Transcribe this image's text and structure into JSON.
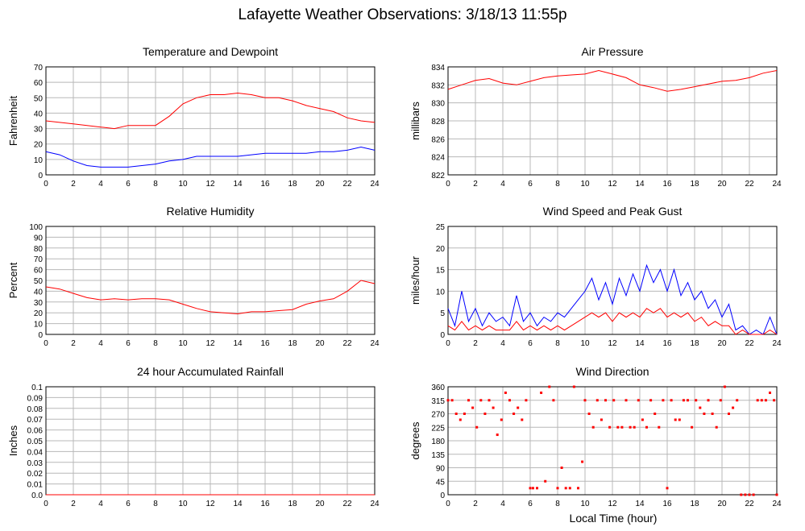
{
  "page": {
    "title": "Lafayette Weather Observations: 3/18/13 11:55p",
    "xaxis_title": "Local Time (hour)"
  },
  "colors": {
    "red": "#ff0000",
    "blue": "#0000ff",
    "grid": "#b8b8b8"
  },
  "chart_data": [
    {
      "id": "temp",
      "type": "line",
      "title": "Temperature and Dewpoint",
      "ylabel": "Fahrenheit",
      "ylim": [
        0,
        70
      ],
      "yticks": [
        "0",
        "10",
        "20",
        "30",
        "40",
        "50",
        "60",
        "70"
      ],
      "xticks": [
        "0",
        "2",
        "4",
        "6",
        "8",
        "10",
        "12",
        "14",
        "16",
        "18",
        "20",
        "22",
        "24"
      ],
      "xlim": [
        0,
        24
      ],
      "grid": true,
      "series": [
        {
          "color": "#ff0000",
          "x": [
            0,
            1,
            2,
            3,
            4,
            5,
            6,
            7,
            8,
            9,
            10,
            11,
            12,
            13,
            14,
            15,
            16,
            17,
            18,
            19,
            20,
            21,
            22,
            23,
            24
          ],
          "y": [
            35,
            34,
            33,
            32,
            31,
            30,
            32,
            32,
            32,
            38,
            46,
            50,
            52,
            52,
            53,
            52,
            50,
            50,
            48,
            45,
            43,
            41,
            37,
            35,
            34
          ]
        },
        {
          "color": "#0000ff",
          "x": [
            0,
            1,
            2,
            3,
            4,
            5,
            6,
            7,
            8,
            9,
            10,
            11,
            12,
            13,
            14,
            15,
            16,
            17,
            18,
            19,
            20,
            21,
            22,
            23,
            24
          ],
          "y": [
            15,
            13,
            9,
            6,
            5,
            5,
            5,
            6,
            7,
            9,
            10,
            12,
            12,
            12,
            12,
            13,
            14,
            14,
            14,
            14,
            15,
            15,
            16,
            18,
            16
          ]
        }
      ]
    },
    {
      "id": "pressure",
      "type": "line",
      "title": "Air Pressure",
      "ylabel": "millibars",
      "ylim": [
        822,
        834
      ],
      "yticks": [
        "822",
        "824",
        "826",
        "828",
        "830",
        "832",
        "834"
      ],
      "xticks": [
        "0",
        "2",
        "4",
        "6",
        "8",
        "10",
        "12",
        "14",
        "16",
        "18",
        "20",
        "22",
        "24"
      ],
      "xlim": [
        0,
        24
      ],
      "grid": true,
      "series": [
        {
          "color": "#ff0000",
          "x": [
            0,
            1,
            2,
            3,
            4,
            5,
            6,
            7,
            8,
            9,
            10,
            11,
            12,
            13,
            14,
            15,
            16,
            17,
            18,
            19,
            20,
            21,
            22,
            23,
            24
          ],
          "y": [
            831.5,
            832.0,
            832.5,
            832.7,
            832.2,
            832.0,
            832.4,
            832.8,
            833.0,
            833.1,
            833.2,
            833.6,
            833.2,
            832.8,
            832.0,
            831.7,
            831.3,
            831.5,
            831.8,
            832.1,
            832.4,
            832.5,
            832.8,
            833.3,
            833.6
          ]
        }
      ]
    },
    {
      "id": "rh",
      "type": "line",
      "title": "Relative Humidity",
      "ylabel": "Percent",
      "ylim": [
        0,
        100
      ],
      "yticks": [
        "0",
        "10",
        "20",
        "30",
        "40",
        "50",
        "60",
        "70",
        "80",
        "90",
        "100"
      ],
      "xticks": [
        "0",
        "2",
        "4",
        "6",
        "8",
        "10",
        "12",
        "14",
        "16",
        "18",
        "20",
        "22",
        "24"
      ],
      "xlim": [
        0,
        24
      ],
      "grid": true,
      "series": [
        {
          "color": "#ff0000",
          "x": [
            0,
            1,
            2,
            3,
            4,
            5,
            6,
            7,
            8,
            9,
            10,
            11,
            12,
            13,
            14,
            15,
            16,
            17,
            18,
            19,
            20,
            21,
            22,
            23,
            24
          ],
          "y": [
            44,
            42,
            38,
            34,
            32,
            33,
            32,
            33,
            33,
            32,
            28,
            24,
            21,
            20,
            19,
            21,
            21,
            22,
            23,
            28,
            31,
            33,
            40,
            50,
            47
          ]
        }
      ]
    },
    {
      "id": "wind",
      "type": "line",
      "title": "Wind Speed and Peak Gust",
      "ylabel": "miles/hour",
      "ylim": [
        0,
        25
      ],
      "yticks": [
        "0",
        "5",
        "10",
        "15",
        "20",
        "25"
      ],
      "xticks": [
        "0",
        "2",
        "4",
        "6",
        "8",
        "10",
        "12",
        "14",
        "16",
        "18",
        "20",
        "22",
        "24"
      ],
      "xlim": [
        0,
        24
      ],
      "grid": true,
      "series": [
        {
          "color": "#0000ff",
          "x": [
            0,
            0.5,
            1,
            1.5,
            2,
            2.5,
            3,
            3.5,
            4,
            4.5,
            5,
            5.5,
            6,
            6.5,
            7,
            7.5,
            8,
            8.5,
            9,
            9.5,
            10,
            10.5,
            11,
            11.5,
            12,
            12.5,
            13,
            13.5,
            14,
            14.5,
            15,
            15.5,
            16,
            16.5,
            17,
            17.5,
            18,
            18.5,
            19,
            19.5,
            20,
            20.5,
            21,
            21.5,
            22,
            22.5,
            23,
            23.5,
            24
          ],
          "y": [
            6,
            2,
            10,
            3,
            6,
            2,
            5,
            3,
            4,
            2,
            9,
            3,
            5,
            2,
            4,
            3,
            5,
            4,
            6,
            8,
            10,
            13,
            8,
            12,
            7,
            13,
            9,
            14,
            10,
            16,
            12,
            15,
            10,
            15,
            9,
            12,
            8,
            10,
            6,
            8,
            4,
            7,
            1,
            2,
            0,
            1,
            0,
            4,
            0
          ]
        },
        {
          "color": "#ff0000",
          "x": [
            0,
            0.5,
            1,
            1.5,
            2,
            2.5,
            3,
            3.5,
            4,
            4.5,
            5,
            5.5,
            6,
            6.5,
            7,
            7.5,
            8,
            8.5,
            9,
            9.5,
            10,
            10.5,
            11,
            11.5,
            12,
            12.5,
            13,
            13.5,
            14,
            14.5,
            15,
            15.5,
            16,
            16.5,
            17,
            17.5,
            18,
            18.5,
            19,
            19.5,
            20,
            20.5,
            21,
            21.5,
            22,
            22.5,
            23,
            23.5,
            24
          ],
          "y": [
            2,
            1,
            3,
            1,
            2,
            1,
            2,
            1,
            1,
            1,
            3,
            1,
            2,
            1,
            2,
            1,
            2,
            1,
            2,
            3,
            4,
            5,
            4,
            5,
            3,
            5,
            4,
            5,
            4,
            6,
            5,
            6,
            4,
            5,
            4,
            5,
            3,
            4,
            2,
            3,
            2,
            2,
            0,
            1,
            0,
            0,
            0,
            1,
            0
          ]
        }
      ]
    },
    {
      "id": "rain",
      "type": "line",
      "title": "24 hour Accumulated Rainfall",
      "ylabel": "Inches",
      "ylim": [
        0,
        0.1
      ],
      "yticks": [
        "0.0",
        "0.01",
        "0.02",
        "0.03",
        "0.04",
        "0.05",
        "0.06",
        "0.07",
        "0.08",
        "0.09",
        "0.1"
      ],
      "xticks": [
        "0",
        "2",
        "4",
        "6",
        "8",
        "10",
        "12",
        "14",
        "16",
        "18",
        "20",
        "22",
        "24"
      ],
      "xlim": [
        0,
        24
      ],
      "grid": true,
      "series": [
        {
          "color": "#ff0000",
          "x": [
            0,
            24
          ],
          "y": [
            0,
            0
          ]
        }
      ]
    },
    {
      "id": "dir",
      "type": "scatter",
      "title": "Wind Direction",
      "ylabel": "degrees",
      "ylim": [
        0,
        360
      ],
      "yticks": [
        "0",
        "45",
        "90",
        "135",
        "180",
        "225",
        "270",
        "315",
        "360"
      ],
      "xticks": [
        "0",
        "2",
        "4",
        "6",
        "8",
        "10",
        "12",
        "14",
        "16",
        "18",
        "20",
        "22",
        "24"
      ],
      "xlim": [
        0,
        24
      ],
      "grid": true,
      "series": [
        {
          "color": "#ff0000",
          "x": [
            0,
            0.3,
            0.6,
            0.9,
            1.2,
            1.5,
            1.8,
            2.1,
            2.4,
            2.7,
            3,
            3.3,
            3.6,
            3.9,
            4.2,
            4.5,
            4.8,
            5.1,
            5.4,
            5.7,
            6,
            6.2,
            6.5,
            6.8,
            7.1,
            7.4,
            7.7,
            8,
            8.3,
            8.6,
            8.9,
            9.2,
            9.5,
            9.8,
            10,
            10.3,
            10.6,
            10.9,
            11.2,
            11.5,
            11.8,
            12.1,
            12.4,
            12.7,
            13,
            13.3,
            13.6,
            13.9,
            14.2,
            14.5,
            14.8,
            15.1,
            15.4,
            15.7,
            16,
            16.3,
            16.6,
            16.9,
            17.2,
            17.5,
            17.8,
            18.1,
            18.4,
            18.7,
            19,
            19.3,
            19.6,
            19.9,
            20.2,
            20.5,
            20.8,
            21.1,
            21.4,
            21.7,
            22,
            22.3,
            22.6,
            22.9,
            23.2,
            23.5,
            23.8,
            24
          ],
          "y": [
            315,
            315,
            270,
            250,
            270,
            315,
            290,
            225,
            315,
            270,
            315,
            290,
            200,
            250,
            340,
            315,
            270,
            290,
            250,
            315,
            22,
            22,
            22,
            340,
            45,
            360,
            315,
            22,
            90,
            22,
            22,
            360,
            22,
            110,
            315,
            270,
            225,
            315,
            250,
            315,
            225,
            315,
            225,
            225,
            315,
            225,
            225,
            315,
            250,
            225,
            315,
            270,
            225,
            315,
            22,
            315,
            250,
            250,
            315,
            315,
            225,
            315,
            290,
            270,
            315,
            270,
            225,
            315,
            360,
            270,
            290,
            315,
            0,
            0,
            0,
            0,
            315,
            315,
            315,
            340,
            315,
            0
          ]
        }
      ]
    }
  ]
}
